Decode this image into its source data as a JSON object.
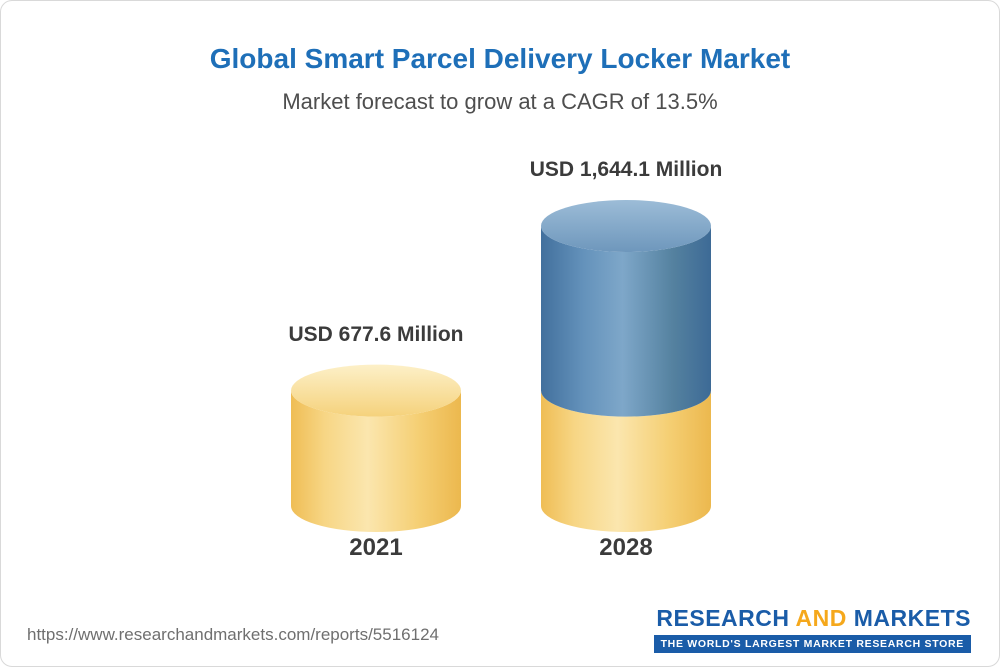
{
  "chart_data": {
    "type": "bar",
    "title": "Global Smart Parcel Delivery Locker Market",
    "subtitle": "Market forecast to grow at a CAGR of 13.5%",
    "cagr_percent": 13.5,
    "categories": [
      "2021",
      "2028"
    ],
    "values": [
      677.6,
      1644.1
    ],
    "value_labels": [
      "USD 677.6 Million",
      "USD 1,644.1 Million"
    ],
    "unit": "USD Million",
    "ylim": [
      0,
      1644.1
    ],
    "grid": false,
    "legend": false,
    "bar_style": "3d-cylinder",
    "colors": {
      "base_gold": "#f6ce6b",
      "growth_blue": "#4c7eac",
      "title_blue": "#1e6fb8",
      "label_dark": "#3b3b3b"
    },
    "notes": "2028 cylinder is gold up to the 2021 value, blue above it"
  },
  "footer": {
    "url": "https://www.researchandmarkets.com/reports/5516124",
    "logo": {
      "research": "RESEARCH",
      "and": "AND",
      "markets": "MARKETS",
      "tagline": "THE WORLD'S LARGEST MARKET RESEARCH STORE"
    }
  }
}
